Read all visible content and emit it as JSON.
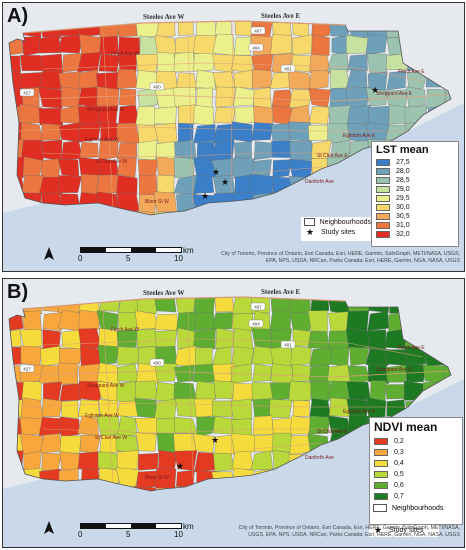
{
  "panels": [
    {
      "label": "A)",
      "legend": {
        "title": "LST mean",
        "items": [
          {
            "value": "27,5",
            "color": "#3b7fc8"
          },
          {
            "value": "28,0",
            "color": "#6fa0b9"
          },
          {
            "value": "28,5",
            "color": "#9cc3b0"
          },
          {
            "value": "29,0",
            "color": "#c7e2a0"
          },
          {
            "value": "29,5",
            "color": "#ecf08c"
          },
          {
            "value": "30,0",
            "color": "#f7d86a"
          },
          {
            "value": "30,5",
            "color": "#f3a95a"
          },
          {
            "value": "31,0",
            "color": "#ec7640"
          },
          {
            "value": "32,0",
            "color": "#e02f22"
          }
        ]
      },
      "roads": [
        "Steeles Ave W",
        "Steeles Ave E",
        "Finch Ave W",
        "Finch Ave E",
        "Sheppard Ave W",
        "Sheppard Ave E",
        "Eglinton Ave W",
        "Eglinton Ave E",
        "St Clair Ave W",
        "St Clair Ave E",
        "Danforth Ave",
        "Bloor St W"
      ],
      "highway_shields": [
        "407",
        "404",
        "401",
        "400",
        "427"
      ]
    },
    {
      "label": "B)",
      "legend": {
        "title": "NDVI mean",
        "items": [
          {
            "value": "0,2",
            "color": "#e43a22"
          },
          {
            "value": "0,3",
            "color": "#f7a73c"
          },
          {
            "value": "0,4",
            "color": "#f5dc3c"
          },
          {
            "value": "0,5",
            "color": "#b9d83a"
          },
          {
            "value": "0,6",
            "color": "#5fae32"
          },
          {
            "value": "0,7",
            "color": "#1e7a22"
          }
        ]
      },
      "roads": [
        "Steeles Ave W",
        "Steeles Ave E",
        "Finch Ave W",
        "Finch Ave E",
        "Sheppard Ave W",
        "Sheppard Ave E",
        "Eglinton Ave W",
        "Eglinton Ave E",
        "St Clair Ave W",
        "St Clair Ave E",
        "Danforth Ave",
        "Bloor St W"
      ],
      "highway_shields": [
        "407",
        "404",
        "401",
        "400",
        "427"
      ]
    }
  ],
  "key": {
    "neighbourhoods": "Neighbourhoods",
    "study_sites": "Study sites"
  },
  "scale": {
    "ticks": [
      "0",
      "5",
      "10"
    ],
    "unit": "km"
  },
  "north_label": "N",
  "attribution": "City of Toronto, Province of Ontario, Esri Canada, Esri, HERE, Garmin, SafeGraph, METI/NASA, USGS, EPA, NPS, USDA, NRCan, Parks Canada; Esri, HERE, Garmin, NGA, NASA, USGS"
}
